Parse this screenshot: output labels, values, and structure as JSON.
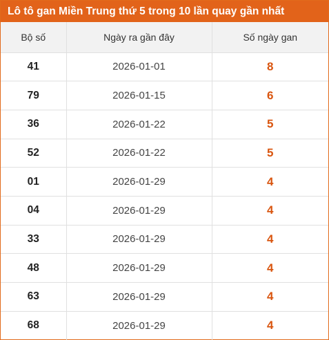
{
  "title": "Lô tô gan Miền Trung thứ 5 trong 10 lần quay gần nhất",
  "headers": {
    "col1": "Bộ số",
    "col2": "Ngày ra gần đây",
    "col3": "Số ngày gan"
  },
  "rows": [
    {
      "number": "41",
      "date": "2026-01-01",
      "days": "8"
    },
    {
      "number": "79",
      "date": "2026-01-15",
      "days": "6"
    },
    {
      "number": "36",
      "date": "2026-01-22",
      "days": "5"
    },
    {
      "number": "52",
      "date": "2026-01-22",
      "days": "5"
    },
    {
      "number": "01",
      "date": "2026-01-29",
      "days": "4"
    },
    {
      "number": "04",
      "date": "2026-01-29",
      "days": "4"
    },
    {
      "number": "33",
      "date": "2026-01-29",
      "days": "4"
    },
    {
      "number": "48",
      "date": "2026-01-29",
      "days": "4"
    },
    {
      "number": "63",
      "date": "2026-01-29",
      "days": "4"
    },
    {
      "number": "68",
      "date": "2026-01-29",
      "days": "4"
    }
  ],
  "colors": {
    "accent": "#e2631a",
    "days_text": "#d9550f",
    "header_bg": "#f2f2f2"
  }
}
